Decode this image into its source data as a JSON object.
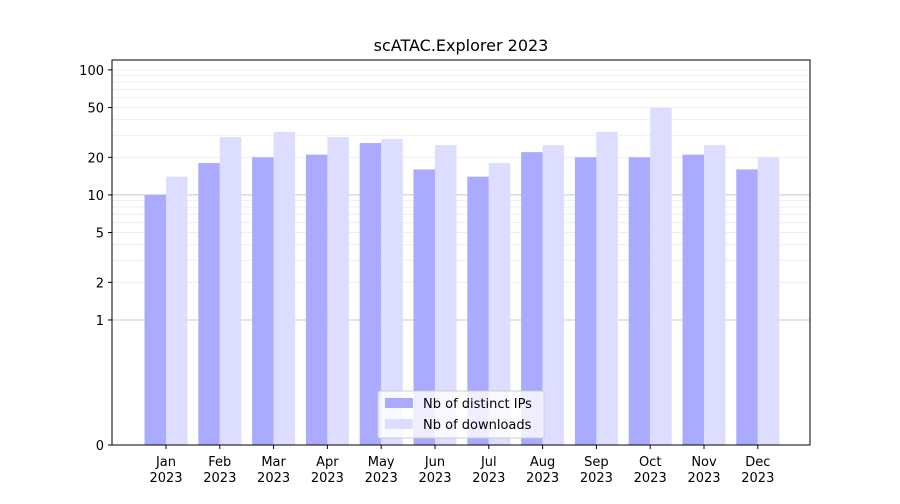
{
  "chart_data": {
    "type": "bar",
    "title": "scATAC.Explorer 2023",
    "xlabel": "",
    "ylabel": "",
    "yscale": "symlog",
    "ylim": [
      0,
      120
    ],
    "yticks": [
      0,
      1,
      2,
      5,
      10,
      20,
      50,
      100
    ],
    "ytick_labels": [
      "0",
      "1",
      "2",
      "5",
      "10",
      "20",
      "50",
      "100"
    ],
    "grid": "horizontal",
    "legend_position": "bottom-center",
    "categories": [
      [
        "Jan",
        "2023"
      ],
      [
        "Feb",
        "2023"
      ],
      [
        "Mar",
        "2023"
      ],
      [
        "Apr",
        "2023"
      ],
      [
        "May",
        "2023"
      ],
      [
        "Jun",
        "2023"
      ],
      [
        "Jul",
        "2023"
      ],
      [
        "Aug",
        "2023"
      ],
      [
        "Sep",
        "2023"
      ],
      [
        "Oct",
        "2023"
      ],
      [
        "Nov",
        "2023"
      ],
      [
        "Dec",
        "2023"
      ]
    ],
    "series": [
      {
        "name": "Nb of distinct IPs",
        "color": "#aaaaff",
        "values": [
          10,
          18,
          20,
          21,
          26,
          16,
          14,
          22,
          20,
          20,
          21,
          16
        ]
      },
      {
        "name": "Nb of downloads",
        "color": "#ddddff",
        "values": [
          14,
          29,
          32,
          29,
          28,
          25,
          18,
          25,
          32,
          50,
          25,
          20
        ]
      }
    ]
  }
}
